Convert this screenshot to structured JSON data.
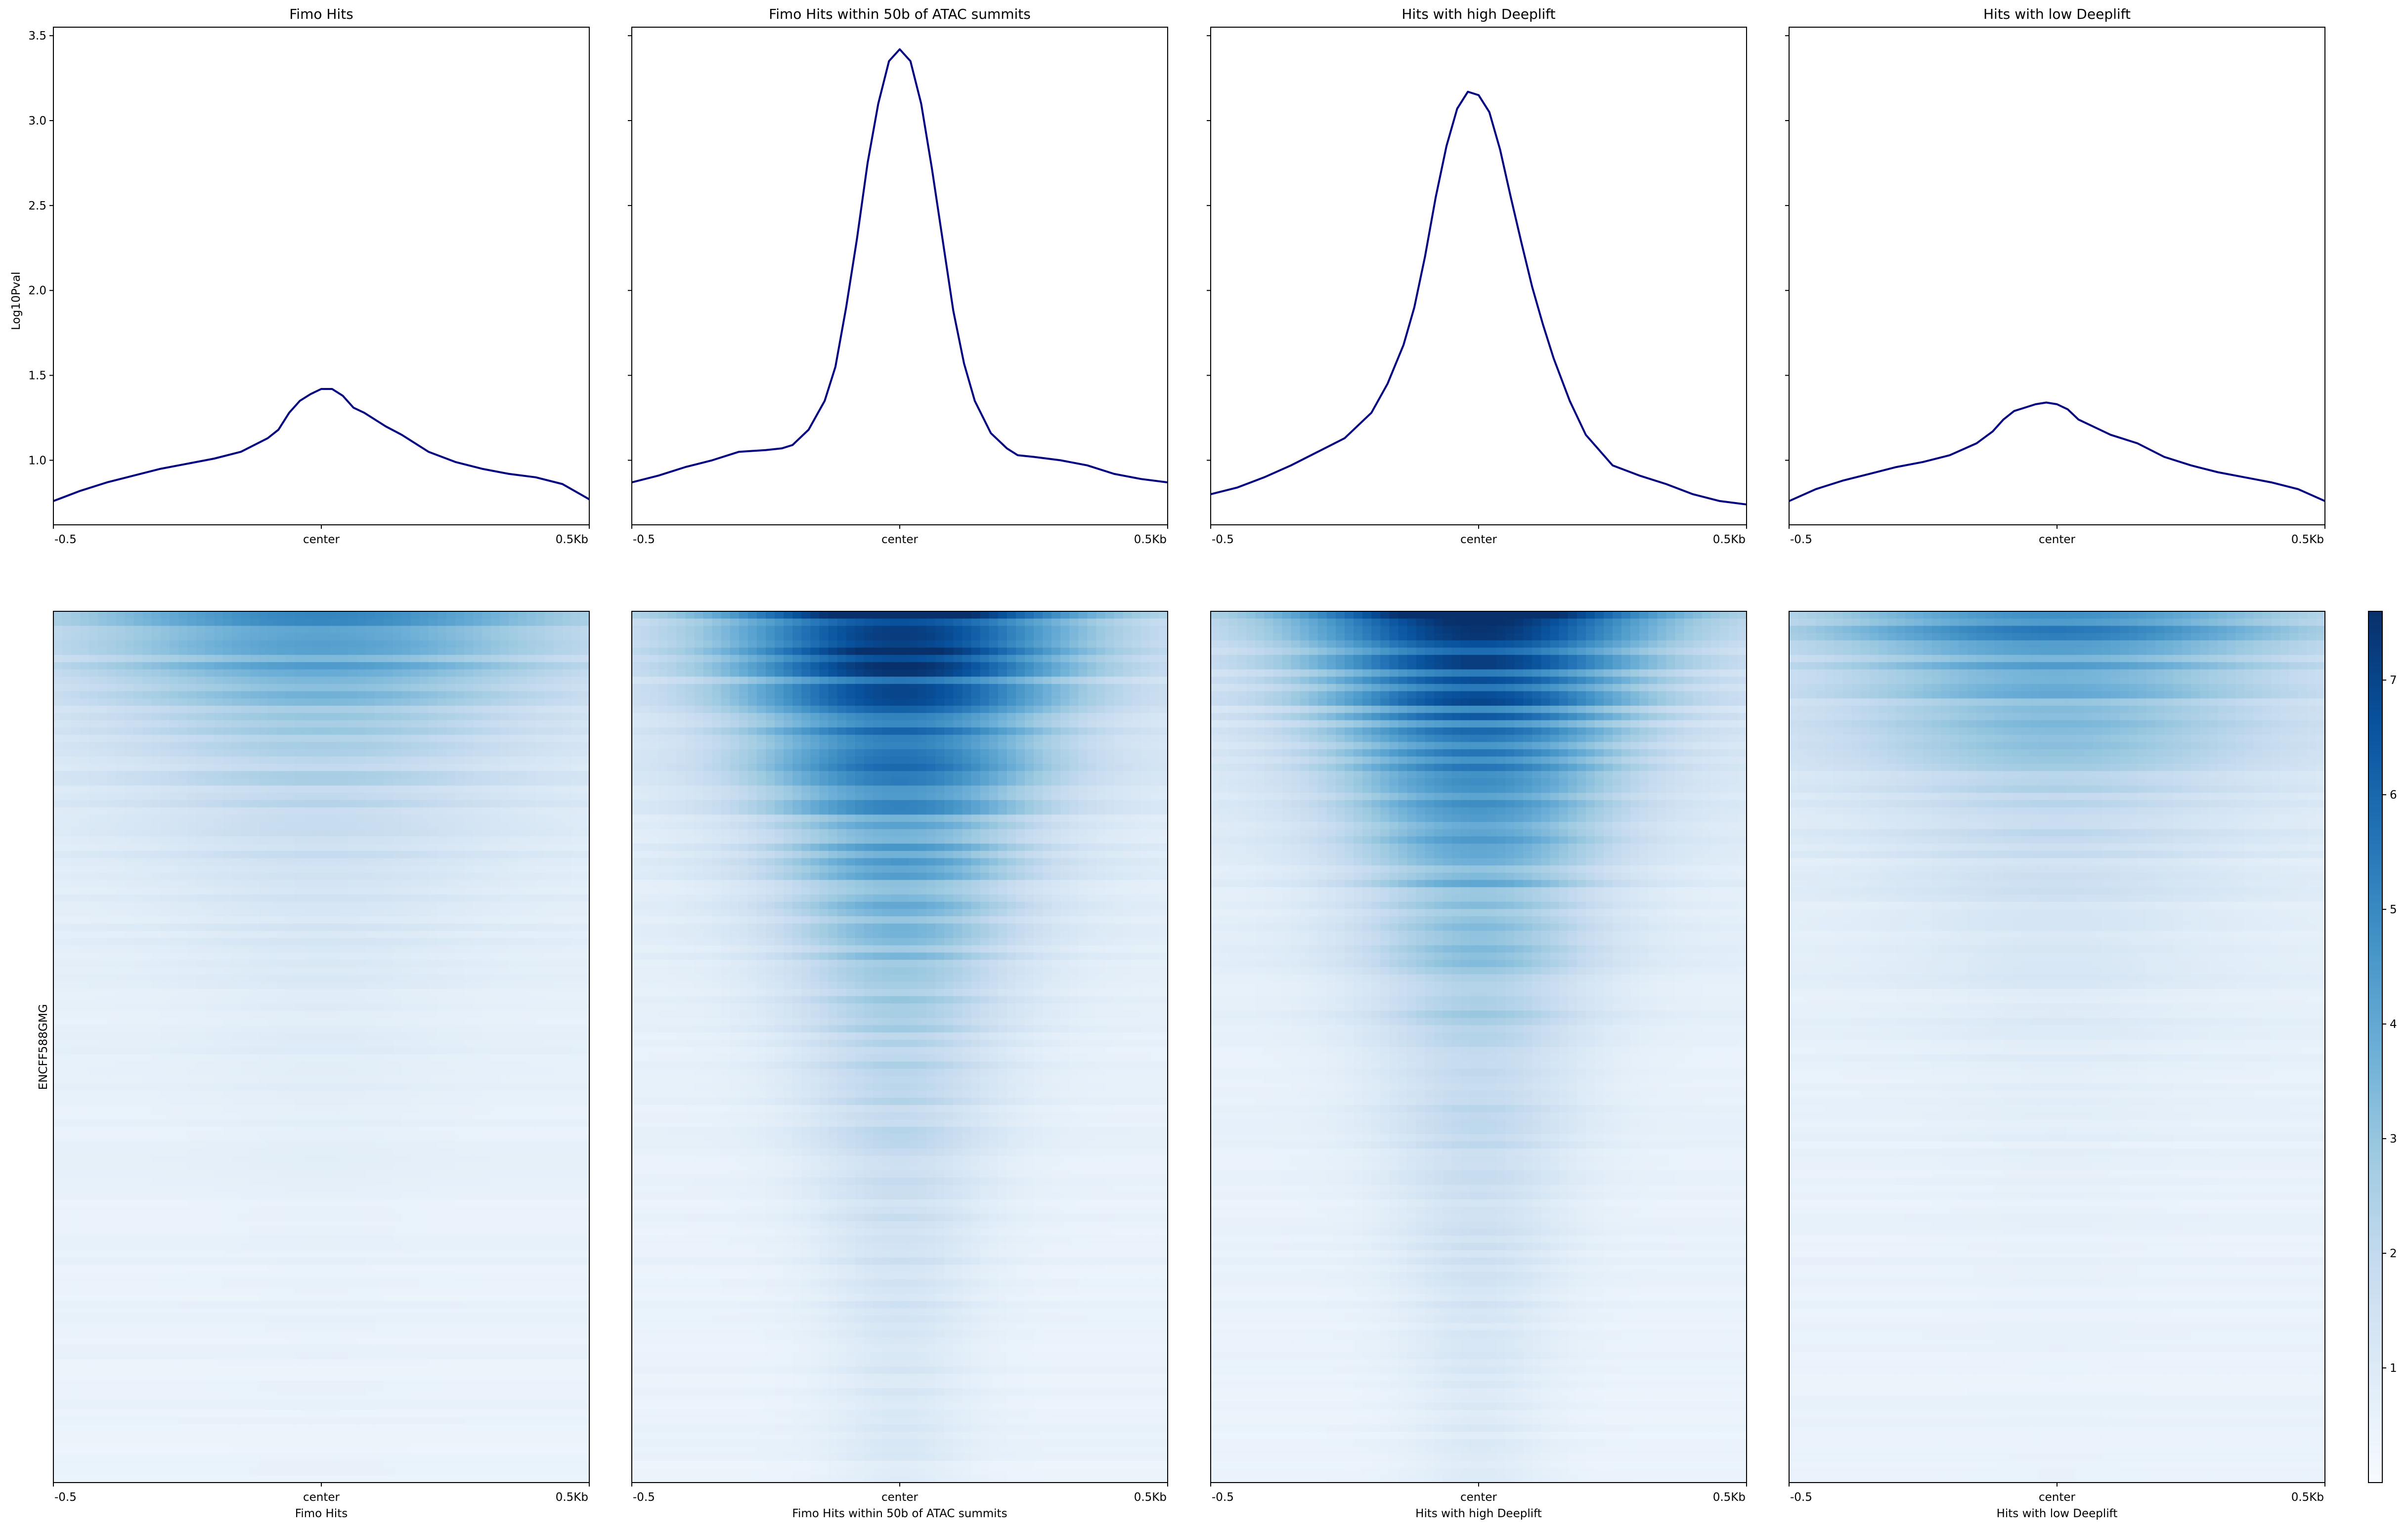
{
  "chart_data": {
    "type": "line",
    "ylabel": "Log10Pval",
    "ylim": [
      0.62,
      3.55
    ],
    "yticks": [
      "1.0",
      "1.5",
      "2.0",
      "2.5",
      "3.0",
      "3.5"
    ],
    "xticks": [
      "-0.5",
      "center",
      "0.5Kb"
    ],
    "heatmap_row_label": "ENCFF588GMG",
    "colorbar": {
      "min": 0,
      "max": 7.6,
      "ticks": [
        "1",
        "2",
        "3",
        "4",
        "5",
        "6",
        "7"
      ],
      "colormap": "Blues"
    },
    "colors": {
      "line": "#000080",
      "heat_low": "#f7fbff",
      "heat_high": "#08306b"
    },
    "panels": [
      {
        "title": "Fimo Hits",
        "xlabel": "Fimo Hits",
        "intensity": 0.55,
        "profile": {
          "x": [
            -0.5,
            -0.45,
            -0.4,
            -0.35,
            -0.3,
            -0.25,
            -0.2,
            -0.15,
            -0.1,
            -0.08,
            -0.06,
            -0.04,
            -0.02,
            0,
            0.02,
            0.04,
            0.06,
            0.08,
            0.1,
            0.12,
            0.15,
            0.2,
            0.25,
            0.3,
            0.35,
            0.4,
            0.45,
            0.5
          ],
          "y": [
            0.76,
            0.82,
            0.87,
            0.91,
            0.95,
            0.98,
            1.01,
            1.05,
            1.13,
            1.18,
            1.28,
            1.35,
            1.39,
            1.42,
            1.42,
            1.38,
            1.31,
            1.28,
            1.24,
            1.2,
            1.15,
            1.05,
            0.99,
            0.95,
            0.92,
            0.9,
            0.86,
            0.77
          ]
        }
      },
      {
        "title": "Fimo Hits within 50b of ATAC summits",
        "xlabel": "Fimo Hits within 50b of ATAC summits",
        "intensity": 1.0,
        "profile": {
          "x": [
            -0.5,
            -0.45,
            -0.4,
            -0.35,
            -0.3,
            -0.25,
            -0.22,
            -0.2,
            -0.17,
            -0.14,
            -0.12,
            -0.1,
            -0.08,
            -0.06,
            -0.04,
            -0.02,
            0,
            0.02,
            0.04,
            0.06,
            0.08,
            0.1,
            0.12,
            0.14,
            0.17,
            0.2,
            0.22,
            0.25,
            0.3,
            0.35,
            0.4,
            0.45,
            0.5
          ],
          "y": [
            0.87,
            0.91,
            0.96,
            1.0,
            1.05,
            1.06,
            1.07,
            1.09,
            1.18,
            1.35,
            1.55,
            1.9,
            2.3,
            2.75,
            3.1,
            3.35,
            3.42,
            3.35,
            3.1,
            2.72,
            2.3,
            1.88,
            1.57,
            1.35,
            1.16,
            1.07,
            1.03,
            1.02,
            1.0,
            0.97,
            0.92,
            0.89,
            0.87
          ]
        }
      },
      {
        "title": "Hits with high Deeplift",
        "xlabel": "Hits with high Deeplift",
        "intensity": 0.95,
        "profile": {
          "x": [
            -0.5,
            -0.45,
            -0.4,
            -0.35,
            -0.3,
            -0.25,
            -0.2,
            -0.17,
            -0.14,
            -0.12,
            -0.1,
            -0.08,
            -0.06,
            -0.04,
            -0.02,
            0,
            0.02,
            0.04,
            0.06,
            0.08,
            0.1,
            0.12,
            0.14,
            0.17,
            0.2,
            0.25,
            0.3,
            0.35,
            0.4,
            0.45,
            0.5
          ],
          "y": [
            0.8,
            0.84,
            0.9,
            0.97,
            1.05,
            1.13,
            1.28,
            1.45,
            1.68,
            1.9,
            2.2,
            2.55,
            2.85,
            3.07,
            3.17,
            3.15,
            3.05,
            2.83,
            2.55,
            2.28,
            2.02,
            1.8,
            1.6,
            1.35,
            1.15,
            0.97,
            0.91,
            0.86,
            0.8,
            0.76,
            0.74
          ]
        }
      },
      {
        "title": "Hits with low Deeplift",
        "xlabel": "Hits with low Deeplift",
        "intensity": 0.6,
        "profile": {
          "x": [
            -0.5,
            -0.45,
            -0.4,
            -0.35,
            -0.3,
            -0.25,
            -0.2,
            -0.15,
            -0.12,
            -0.1,
            -0.08,
            -0.06,
            -0.04,
            -0.02,
            0,
            0.02,
            0.04,
            0.06,
            0.08,
            0.1,
            0.12,
            0.15,
            0.2,
            0.25,
            0.3,
            0.35,
            0.4,
            0.45,
            0.5
          ],
          "y": [
            0.76,
            0.83,
            0.88,
            0.92,
            0.96,
            0.99,
            1.03,
            1.1,
            1.17,
            1.24,
            1.29,
            1.31,
            1.33,
            1.34,
            1.33,
            1.3,
            1.24,
            1.21,
            1.18,
            1.15,
            1.13,
            1.1,
            1.02,
            0.97,
            0.93,
            0.9,
            0.87,
            0.83,
            0.76
          ]
        }
      }
    ]
  }
}
